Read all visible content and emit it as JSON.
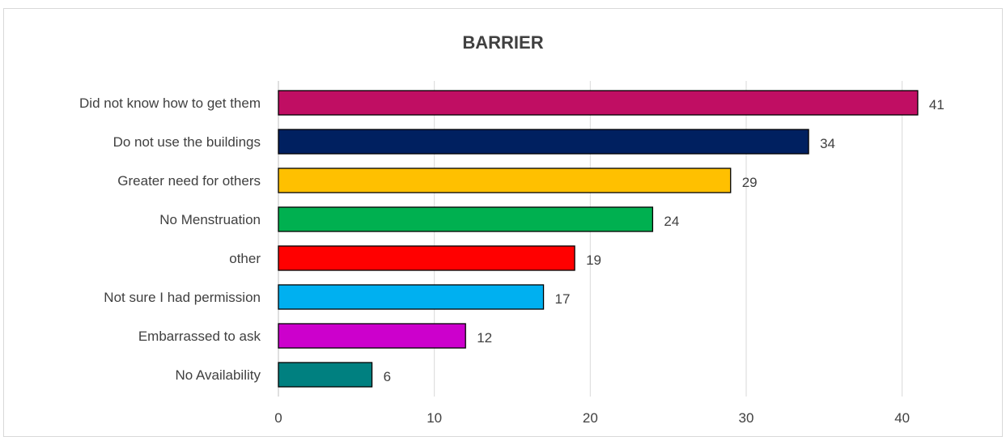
{
  "chart_data": {
    "type": "bar",
    "orientation": "horizontal",
    "title": "BARRIER",
    "xlabel": "",
    "ylabel": "",
    "categories": [
      "Did not know how to get them",
      "Do not use the buildings",
      "Greater need for others",
      "No Menstruation",
      "other",
      "Not sure I had permission",
      "Embarrassed to ask",
      "No Availability"
    ],
    "values": [
      41,
      34,
      29,
      24,
      19,
      17,
      12,
      6
    ],
    "colors": [
      "#c00e63",
      "#002060",
      "#ffc000",
      "#00b050",
      "#ff0000",
      "#00b0f0",
      "#cc00cc",
      "#008080"
    ],
    "xlim": [
      0,
      45
    ],
    "xticks": [
      0,
      10,
      20,
      30,
      40
    ],
    "grid": true,
    "data_labels": true,
    "legend": "none"
  }
}
